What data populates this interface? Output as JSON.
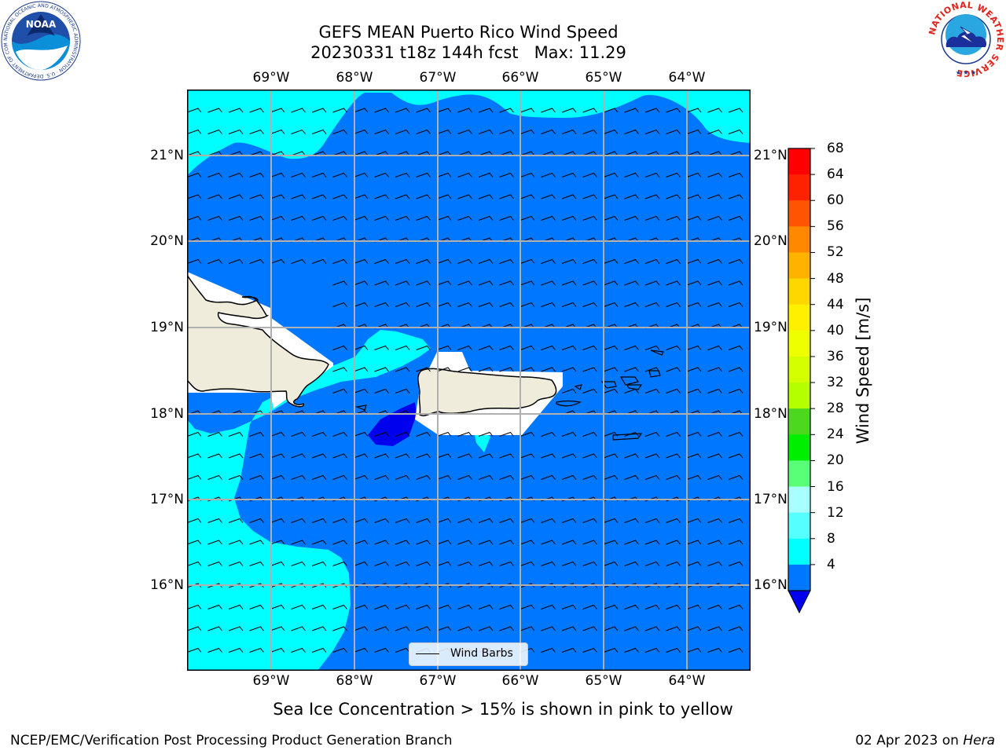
{
  "title": {
    "line1": "GEFS MEAN Puerto Rico Wind Speed",
    "line2": "20230331 t18z 144h fcst   Max: 11.29"
  },
  "lon_ticks": [
    "69°W",
    "68°W",
    "67°W",
    "66°W",
    "65°W",
    "64°W"
  ],
  "lat_ticks": [
    "21°N",
    "20°N",
    "19°N",
    "18°N",
    "17°N",
    "16°N"
  ],
  "colorbar": {
    "label": "Wind Speed [m/s]",
    "ticks": [
      "68",
      "64",
      "60",
      "56",
      "52",
      "48",
      "44",
      "40",
      "36",
      "32",
      "28",
      "24",
      "20",
      "16",
      "12",
      "8",
      "4"
    ],
    "colors": [
      "#ff0000",
      "#ff2200",
      "#ff5500",
      "#ff8800",
      "#ffb300",
      "#ffd700",
      "#fff000",
      "#eeff00",
      "#d4ff00",
      "#b4ff00",
      "#4cd81f",
      "#00ee00",
      "#5aff78",
      "#a8ffff",
      "#55ffff",
      "#00ffff",
      "#0077ff"
    ],
    "under_color": "#0000ee"
  },
  "legend": {
    "label": "Wind Barbs"
  },
  "subtitle": "Sea Ice Concentration > 15% is shown in pink to yellow",
  "footer": {
    "left": "NCEP/EMC/Verification Post Processing Product Generation Branch",
    "date": "02 Apr 2023 on ",
    "host": "Hera"
  },
  "logos": {
    "left": {
      "text": "NOAA",
      "ring_text": "NATIONAL OCEANIC AND ATMOSPHERIC ADMINISTRATION · U.S. DEPARTMENT OF COMMERCE"
    },
    "right": {
      "ring_text": "NATIONAL WEATHER SERVICE"
    }
  }
}
